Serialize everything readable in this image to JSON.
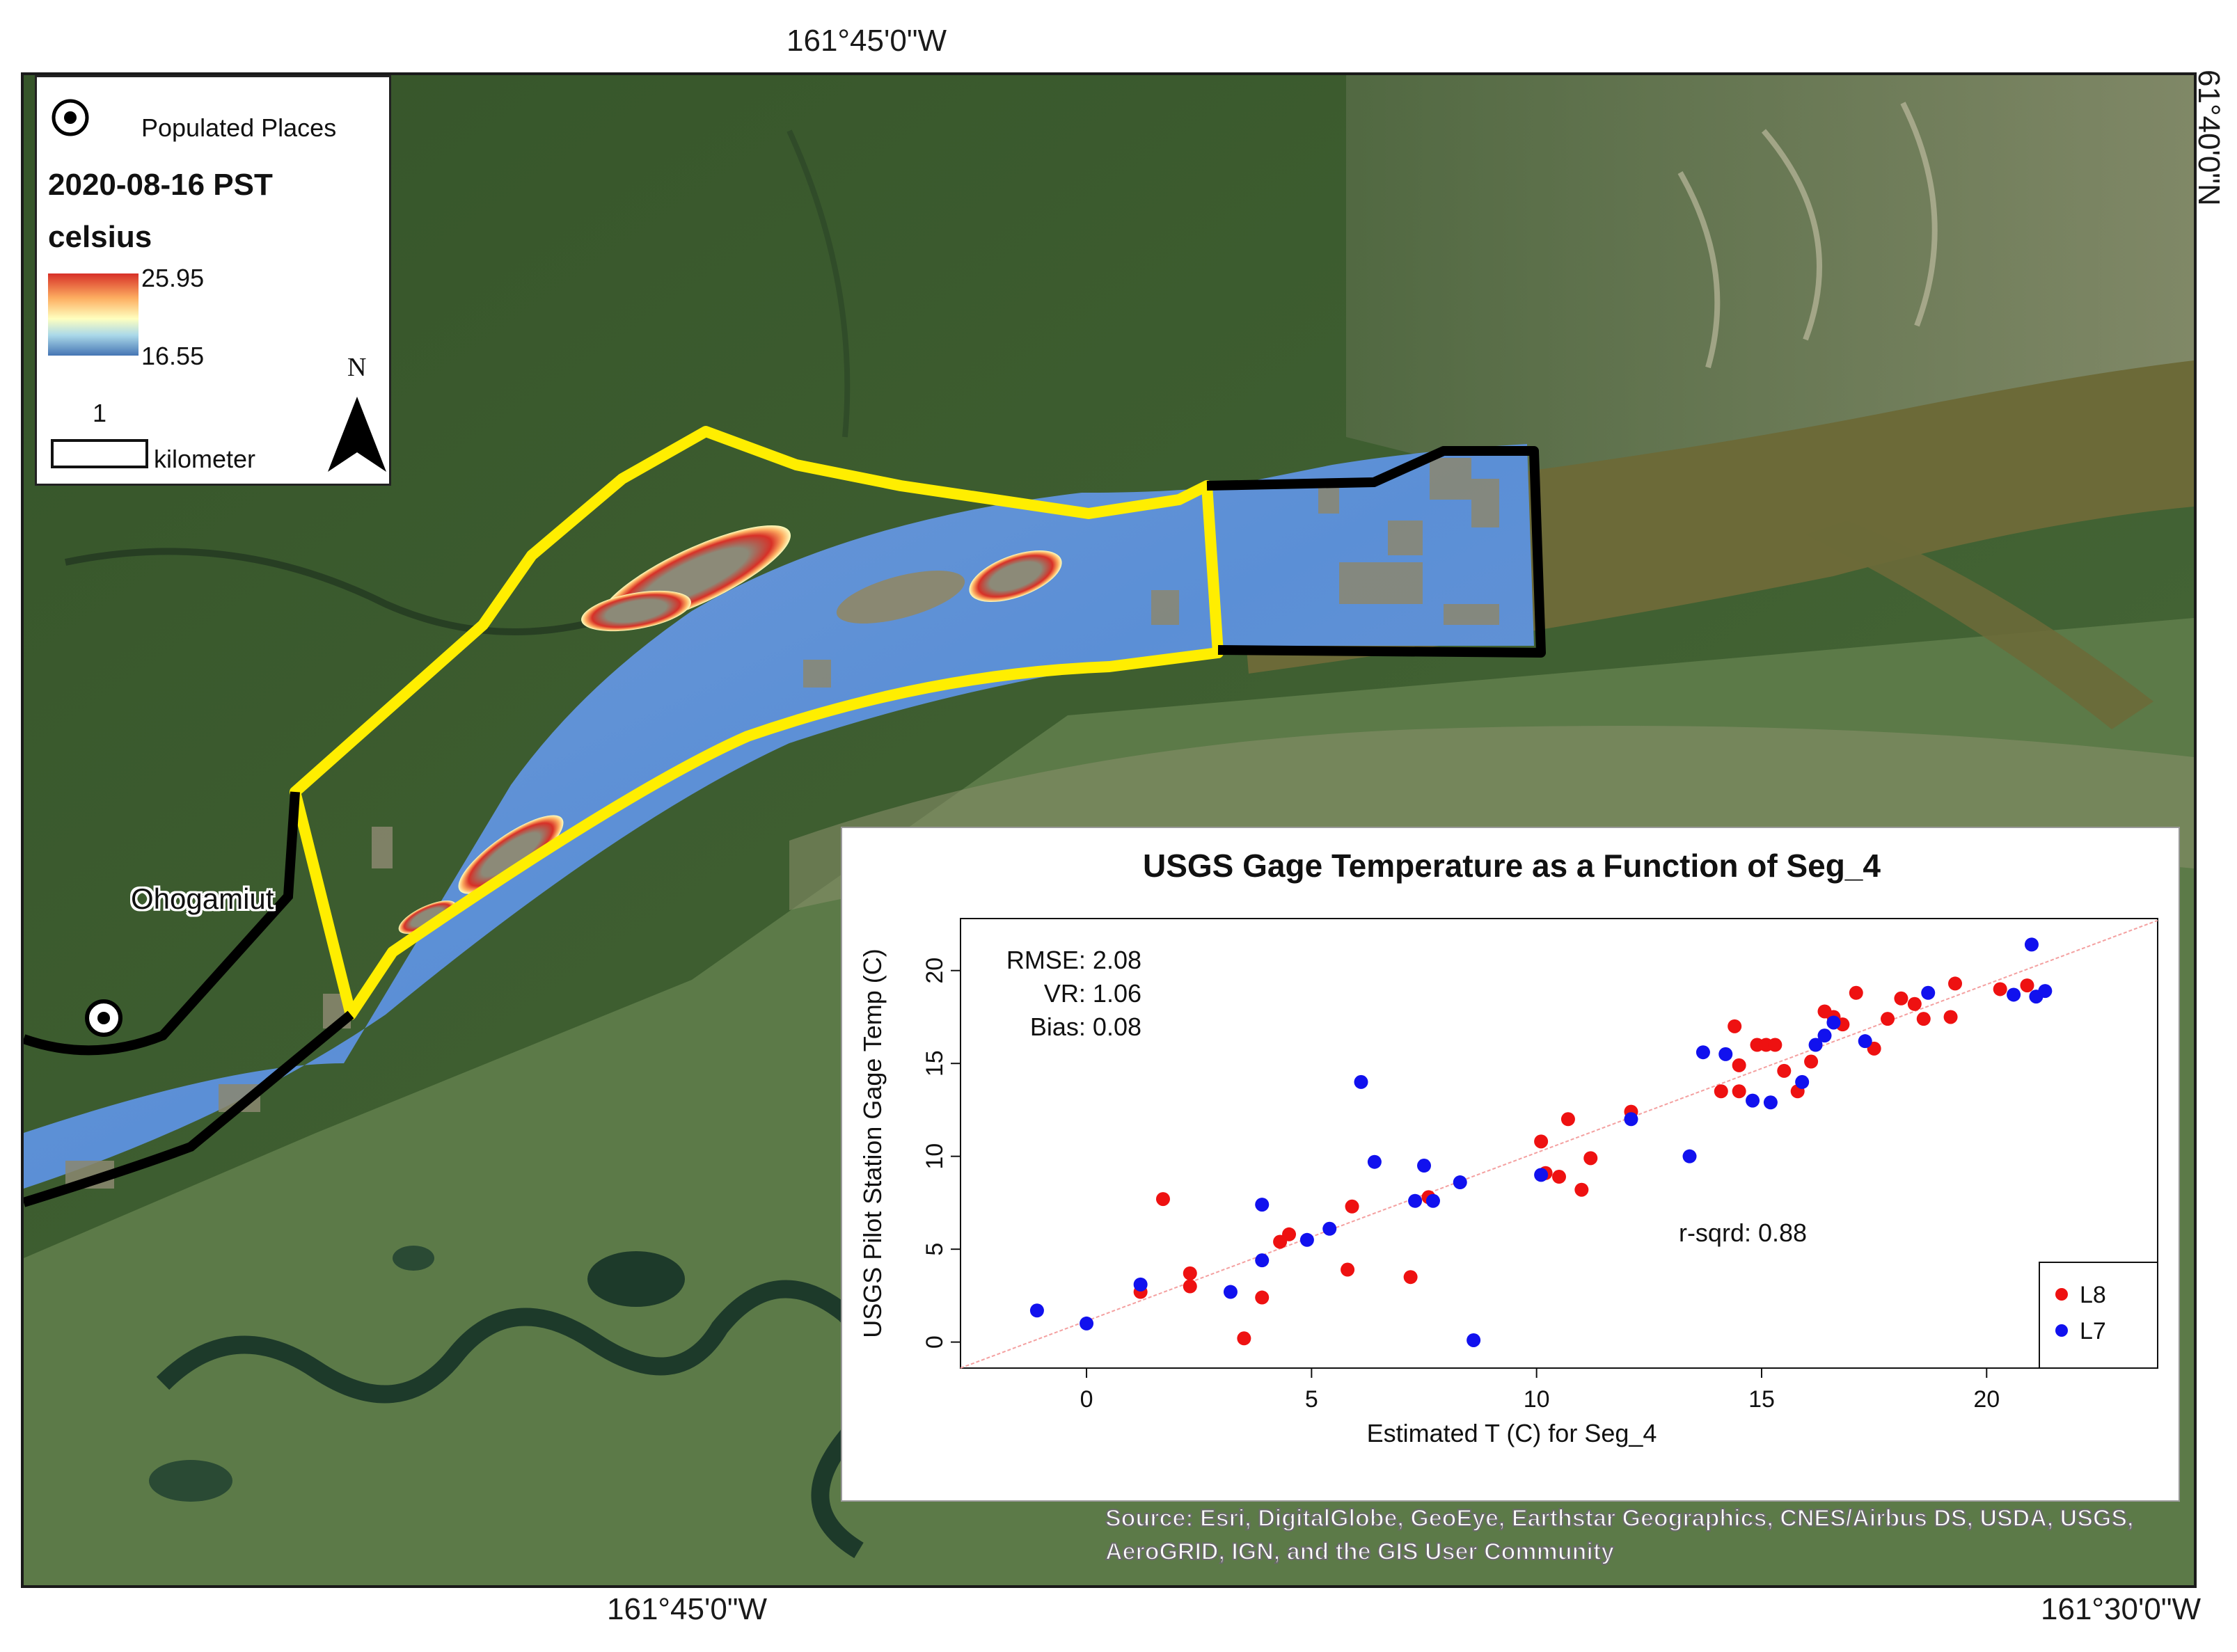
{
  "graticule": {
    "top_label": "161°45'0\"W",
    "right_label": "61°40'0\"N",
    "bottom_left_label": "161°45'0\"W",
    "bottom_right_label": "161°30'0\"W"
  },
  "legend": {
    "populated_places_label": "Populated Places",
    "date_label": "2020-08-16 PST",
    "unit_label": "celsius",
    "max_value": "25.95",
    "min_value": "16.55",
    "colors": [
      "#d73027",
      "#fdae61",
      "#ffffbf",
      "#abd9e9",
      "#4575b4"
    ],
    "scale_number": "1",
    "scale_unit": "kilometer",
    "north_label": "N"
  },
  "map": {
    "place_name": "Ohogamiut",
    "segment_colors": {
      "yellow": "#ffee00",
      "black": "#000000"
    },
    "water_color": "#5b8fd6"
  },
  "chart": {
    "title": "USGS Gage Temperature as a Function of Seg_4",
    "xlabel": "Estimated T (C) for Seg_4",
    "ylabel": "USGS Pilot Station Gage Temp (C)",
    "stats": {
      "rmse": "RMSE: 2.08",
      "vr": "VR: 1.06",
      "bias": "Bias: 0.08",
      "rsq": "r-sqrd: 0.88"
    }
  },
  "chart_data": {
    "type": "scatter",
    "title": "USGS Gage Temperature as a Function of Seg_4",
    "xlabel": "Estimated T (C) for Seg_4",
    "ylabel": "USGS Pilot Station Gage Temp (C)",
    "xlim": [
      -2.8,
      23.8
    ],
    "ylim": [
      -1.4,
      22.8
    ],
    "xticks": [
      0,
      5,
      10,
      15,
      20
    ],
    "yticks": [
      0,
      5,
      10,
      15,
      20
    ],
    "legend_position": "bottom-right",
    "fit_line": {
      "x": [
        -2.8,
        23.8
      ],
      "y": [
        -1.4,
        22.7
      ],
      "color": "#f4a0a0"
    },
    "series": [
      {
        "name": "L8",
        "color": "#ee1111",
        "points": [
          [
            1.2,
            2.7
          ],
          [
            1.7,
            7.7
          ],
          [
            2.3,
            3.7
          ],
          [
            2.3,
            3.0
          ],
          [
            3.5,
            0.2
          ],
          [
            3.9,
            2.4
          ],
          [
            4.3,
            5.4
          ],
          [
            4.5,
            5.8
          ],
          [
            5.8,
            3.9
          ],
          [
            5.9,
            7.3
          ],
          [
            7.2,
            3.5
          ],
          [
            7.6,
            7.8
          ],
          [
            10.1,
            10.8
          ],
          [
            10.2,
            9.1
          ],
          [
            10.5,
            8.9
          ],
          [
            10.7,
            12.0
          ],
          [
            11.0,
            8.2
          ],
          [
            11.2,
            9.9
          ],
          [
            12.1,
            12.4
          ],
          [
            14.1,
            13.5
          ],
          [
            14.4,
            17.0
          ],
          [
            14.5,
            14.9
          ],
          [
            14.5,
            13.5
          ],
          [
            14.9,
            16.0
          ],
          [
            15.1,
            16.0
          ],
          [
            15.3,
            16.0
          ],
          [
            15.5,
            14.6
          ],
          [
            15.8,
            13.5
          ],
          [
            16.1,
            15.1
          ],
          [
            16.4,
            17.8
          ],
          [
            16.6,
            17.5
          ],
          [
            16.8,
            17.1
          ],
          [
            17.1,
            18.8
          ],
          [
            17.5,
            15.8
          ],
          [
            17.8,
            17.4
          ],
          [
            18.1,
            18.5
          ],
          [
            18.4,
            18.2
          ],
          [
            18.6,
            17.4
          ],
          [
            19.3,
            19.3
          ],
          [
            19.2,
            17.5
          ],
          [
            20.3,
            19.0
          ],
          [
            20.9,
            19.2
          ]
        ]
      },
      {
        "name": "L7",
        "color": "#1111ee",
        "points": [
          [
            -1.1,
            1.7
          ],
          [
            0.0,
            1.0
          ],
          [
            1.2,
            3.1
          ],
          [
            3.2,
            2.7
          ],
          [
            3.9,
            7.4
          ],
          [
            3.9,
            4.4
          ],
          [
            4.9,
            5.5
          ],
          [
            5.4,
            6.1
          ],
          [
            6.1,
            14.0
          ],
          [
            6.4,
            9.7
          ],
          [
            7.3,
            7.6
          ],
          [
            7.5,
            9.5
          ],
          [
            7.7,
            7.6
          ],
          [
            8.3,
            8.6
          ],
          [
            8.6,
            0.1
          ],
          [
            10.1,
            9.0
          ],
          [
            12.1,
            12.0
          ],
          [
            13.4,
            10.0
          ],
          [
            13.7,
            15.6
          ],
          [
            14.2,
            15.5
          ],
          [
            14.8,
            13.0
          ],
          [
            15.2,
            12.9
          ],
          [
            15.9,
            14.0
          ],
          [
            16.2,
            16.0
          ],
          [
            16.4,
            16.5
          ],
          [
            16.6,
            17.2
          ],
          [
            17.3,
            16.2
          ],
          [
            18.7,
            18.8
          ],
          [
            20.6,
            18.7
          ],
          [
            21.0,
            21.4
          ],
          [
            21.1,
            18.6
          ],
          [
            21.3,
            18.9
          ]
        ]
      }
    ]
  }
}
